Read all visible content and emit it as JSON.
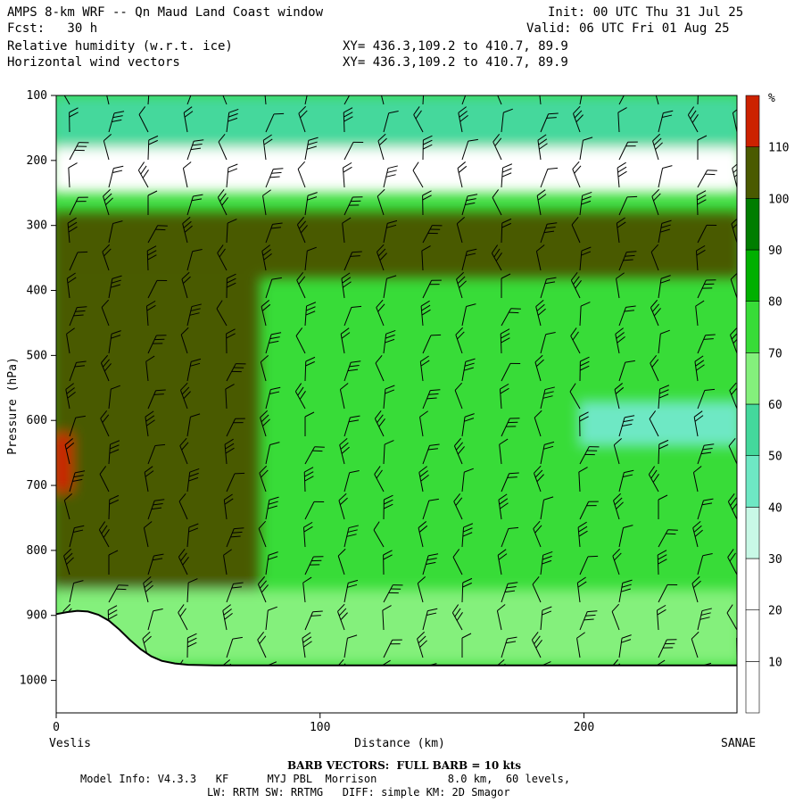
{
  "header": {
    "title": "AMPS 8-km WRF -- Qn Maud Land Coast window",
    "forecast": "Fcst:   30 h",
    "init": "Init: 00 UTC Thu 31 Jul 25",
    "valid": "Valid: 06 UTC Fri 01 Aug 25",
    "field1": "Relative humidity (w.r.t. ice)",
    "field2": "Horizontal wind vectors",
    "xy1": "XY= 436.3,109.2 to 410.7, 89.9",
    "xy2": "XY= 436.3,109.2 to 410.7, 89.9"
  },
  "footer": {
    "barb_note": "BARB VECTORS:  FULL BARB = 10 kts",
    "model_info": "Model Info: V4.3.3   KF      MYJ PBL  Morrison           8.0 km,  60 levels,",
    "model_info2": "LW: RRTM SW: RRTMG   DIFF: simple KM: 2D Smagor"
  },
  "chart_data": {
    "type": "heatmap",
    "title": "Relative humidity (w.r.t. ice)",
    "xlabel": "Distance (km)",
    "ylabel": "Pressure (hPa)",
    "x_start_label": "Veslis",
    "x_end_label": "SANAE",
    "xlim": [
      0,
      258
    ],
    "ylim": [
      1050,
      100
    ],
    "x_ticks": [
      0,
      100,
      200
    ],
    "y_ticks": [
      100,
      200,
      300,
      400,
      500,
      600,
      700,
      800,
      900,
      1000
    ],
    "colorbar": {
      "unit": "%",
      "levels": [
        10,
        20,
        30,
        40,
        50,
        60,
        70,
        80,
        90,
        100,
        110
      ],
      "colors": [
        "#ffffff",
        "#ffffff",
        "#ffffff",
        "#c8f8e6",
        "#6ee8c4",
        "#44d89c",
        "#84f07c",
        "#38dc38",
        "#00b000",
        "#007d00",
        "#4a5a00",
        "#cc2200"
      ]
    },
    "terrain": {
      "x": [
        0,
        4,
        8,
        12,
        16,
        20,
        24,
        28,
        32,
        36,
        40,
        45,
        50,
        60,
        80,
        100,
        120,
        140,
        160,
        180,
        200,
        220,
        240,
        258
      ],
      "p": [
        898,
        895,
        893,
        894,
        899,
        908,
        922,
        938,
        952,
        963,
        970,
        974,
        976,
        977,
        977,
        977,
        977,
        977,
        977,
        977,
        977,
        977,
        977,
        977
      ]
    },
    "regions": [
      {
        "name": "upper-moist-band",
        "level": 50,
        "x": [
          0,
          258
        ],
        "p": [
          100,
          180
        ]
      },
      {
        "name": "dry-layer",
        "level": 10,
        "x": [
          0,
          258
        ],
        "p": [
          180,
          250
        ]
      },
      {
        "name": "saturated-layer",
        "level": 100,
        "x": [
          0,
          258
        ],
        "p": [
          280,
          380
        ]
      },
      {
        "name": "moist-column-west",
        "level": 100,
        "x": [
          0,
          75
        ],
        "p": [
          380,
          860
        ]
      },
      {
        "name": "drier-core-east",
        "level": 40,
        "x": [
          200,
          258
        ],
        "p": [
          570,
          640
        ]
      },
      {
        "name": "boundary-layer",
        "level": 60,
        "x": [
          0,
          258
        ],
        "p": [
          860,
          975
        ]
      },
      {
        "name": "supersaturated-spot",
        "level": 110,
        "x": [
          0,
          4
        ],
        "p": [
          620,
          710
        ]
      }
    ]
  }
}
